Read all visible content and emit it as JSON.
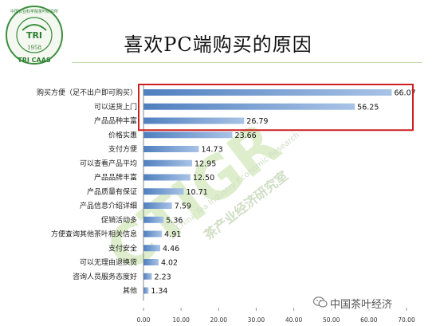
{
  "slide": {
    "title": "喜欢PC端购买的原因",
    "logo": {
      "top_text": "中国农业科学院茶叶研究所",
      "center_text": "TRI",
      "year": "1958",
      "bottom_text": "TRI CAAS"
    },
    "watermark": {
      "big": "CTIGR",
      "en": "China Tea Industry Economic Research",
      "cn": "茶产业经济研究室"
    },
    "footer": {
      "brand": "中国茶叶经济"
    }
  },
  "colors": {
    "bar": "#4f7fbf",
    "bar_light": "#a9c3e6",
    "highlight_box": "#cc1f1f",
    "watermark": "#8bc34a"
  },
  "chart_data": {
    "type": "bar",
    "orientation": "horizontal",
    "categories": [
      "购买方便（足不出户即可购买）",
      "可以送货上门",
      "产品品种丰富",
      "价格实惠",
      "支付方便",
      "可以查看产品平均",
      "产品品牌丰富",
      "产品质量有保证",
      "产品信息介绍详细",
      "促销活动多",
      "方便查询其他茶叶相关信息",
      "支付安全",
      "可以无理由退换货",
      "咨询人员服务态度好",
      "其他"
    ],
    "values": [
      66.07,
      56.25,
      26.79,
      23.66,
      14.73,
      12.95,
      12.5,
      10.71,
      7.59,
      5.36,
      4.91,
      4.46,
      4.02,
      2.23,
      1.34
    ],
    "value_labels": [
      "66.07",
      "56.25",
      "26.79",
      "23.66",
      "14.73",
      "12.95",
      "12.50",
      "10.71",
      "7.59",
      "5.36",
      "4.91",
      "4.46",
      "4.02",
      "2.23",
      "1.34"
    ],
    "ticks": [
      "0.00",
      "10.00",
      "20.00",
      "30.00",
      "40.00",
      "50.00",
      "60.00",
      "70.00"
    ],
    "xlim": [
      0,
      70
    ],
    "highlight_top_n": 3,
    "grid": false,
    "legend": "none"
  }
}
